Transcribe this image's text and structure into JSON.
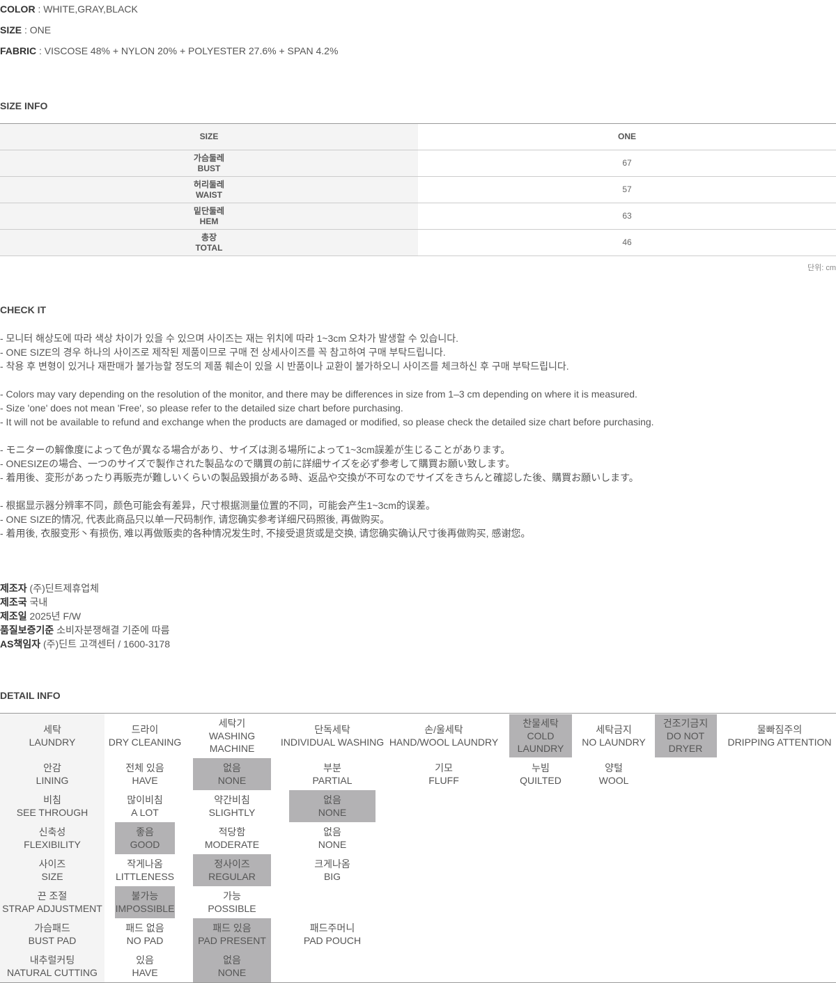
{
  "specs": [
    {
      "label": "COLOR",
      "value": "WHITE,GRAY,BLACK"
    },
    {
      "label": "SIZE",
      "value": "ONE"
    },
    {
      "label": "FABRIC",
      "value": "VISCOSE 48% + NYLON 20% + POLYESTER 27.6% + SPAN 4.2%"
    }
  ],
  "size_info": {
    "title": "SIZE INFO",
    "header": [
      "SIZE",
      "ONE"
    ],
    "rows": [
      {
        "ko": "가슴둘레",
        "en": "BUST",
        "value": "67"
      },
      {
        "ko": "허리둘레",
        "en": "WAIST",
        "value": "57"
      },
      {
        "ko": "밑단둘레",
        "en": "HEM",
        "value": "63"
      },
      {
        "ko": "총장",
        "en": "TOTAL",
        "value": "46"
      }
    ],
    "unit": "단위: cm"
  },
  "check_it": {
    "title": "CHECK IT",
    "groups": [
      [
        "- 모니터 해상도에 따라 색상 차이가 있을 수 있으며 사이즈는 재는 위치에 따라 1~3cm 오차가 발생할 수 있습니다.",
        "- ONE SIZE의 경우 하나의 사이즈로 제작된 제품이므로 구매 전 상세사이즈를 꼭 참고하여 구매 부탁드립니다.",
        "- 착용 후 변형이 있거나 재판매가 불가능할 정도의 제품 훼손이 있을 시 반품이나 교환이 불가하오니 사이즈를 체크하신 후 구매 부탁드립니다."
      ],
      [
        "- Colors may vary depending on the resolution of the monitor, and there may be differences in size from 1–3 cm depending on where it is measured.",
        "- Size 'one' does not mean 'Free', so please refer to the detailed size chart before purchasing.",
        "- It will not be available to refund and exchange when the products are damaged or modified, so please check the detailed size chart before purchasing."
      ],
      [
        "- モニターの解像度によって色が異なる場合があり、サイズは測る場所によって1~3cm誤差が生じることがあります。",
        "- ONESIZEの場合、一つのサイズで製作された製品なので購買の前に詳細サイズを必ず参考して購買お願い致します。",
        "- 着用後、変形があったり再販売が難しいくらいの製品毀損がある時、返品や交換が不可なのでサイズをきちんと確認した後、購買お願いします。"
      ],
      [
        "- 根据显示器分辨率不同，颜色可能会有差异，尺寸根据测量位置的不同，可能会产生1~3cm的误差。",
        "- ONE SIZE的情况, 代表此商品只以单一尺码制作, 请您确实参考详细尺码照後, 再做购买。",
        "- 着用後, 衣服变形丶有损伤, 难以再做贩卖的各种情况发生时, 不接受退货或是交换, 请您确实确认尺寸後再做购买, 感谢您。"
      ]
    ]
  },
  "maker_info": [
    {
      "label": "제조자",
      "value": "(주)딘트제휴업체"
    },
    {
      "label": "제조국",
      "value": "국내"
    },
    {
      "label": "제조일",
      "value": "2025년 F/W"
    },
    {
      "label": "품질보증기준",
      "value": "소비자분쟁해결 기준에 따름"
    },
    {
      "label": "AS책임자",
      "value": "(주)딘트 고객센터 / 1600-3178"
    }
  ],
  "detail_info": {
    "title": "DETAIL INFO",
    "highlight_color": "#b3b2b4",
    "rows": [
      [
        {
          "ko": "세탁",
          "en": "LAUNDRY"
        },
        {
          "ko": "드라이",
          "en": "DRY CLEANING"
        },
        {
          "ko": "세탁기",
          "en": "WASHING MACHINE"
        },
        {
          "ko": "단독세탁",
          "en": "INDIVIDUAL WASHING"
        },
        {
          "ko": "손/울세탁",
          "en": "HAND/WOOL LAUNDRY"
        },
        {
          "ko": "찬물세탁",
          "en": "COLD LAUNDRY",
          "hl": true
        },
        {
          "ko": "세탁금지",
          "en": "NO LAUNDRY"
        },
        {
          "ko": "건조기금지",
          "en": "DO NOT DRYER",
          "hl": true
        },
        {
          "ko": "물빠짐주의",
          "en": "DRIPPING ATTENTION"
        }
      ],
      [
        {
          "ko": "안감",
          "en": "LINING"
        },
        {
          "ko": "전체 있음",
          "en": "HAVE"
        },
        {
          "ko": "없음",
          "en": "NONE",
          "hl": true
        },
        {
          "ko": "부분",
          "en": "PARTIAL"
        },
        {
          "ko": "기모",
          "en": "FLUFF"
        },
        {
          "ko": "누빔",
          "en": "QUILTED"
        },
        {
          "ko": "양털",
          "en": "WOOL"
        }
      ],
      [
        {
          "ko": "비침",
          "en": "SEE THROUGH"
        },
        {
          "ko": "많이비침",
          "en": "A LOT"
        },
        {
          "ko": "약간비침",
          "en": "SLIGHTLY"
        },
        {
          "ko": "없음",
          "en": "NONE",
          "hl": true
        }
      ],
      [
        {
          "ko": "신축성",
          "en": "FLEXIBILITY"
        },
        {
          "ko": "좋음",
          "en": "GOOD",
          "hl": true
        },
        {
          "ko": "적당함",
          "en": "MODERATE"
        },
        {
          "ko": "없음",
          "en": "NONE"
        }
      ],
      [
        {
          "ko": "사이즈",
          "en": "SIZE"
        },
        {
          "ko": "작게나옴",
          "en": "LITTLENESS"
        },
        {
          "ko": "정사이즈",
          "en": "REGULAR",
          "hl": true
        },
        {
          "ko": "크게나옴",
          "en": "BIG"
        }
      ],
      [
        {
          "ko": "끈 조절",
          "en": "STRAP ADJUSTMENT"
        },
        {
          "ko": "불가능",
          "en": "IMPOSSIBLE",
          "hl": true
        },
        {
          "ko": "가능",
          "en": "POSSIBLE"
        }
      ],
      [
        {
          "ko": "가슴패드",
          "en": "BUST PAD"
        },
        {
          "ko": "패드 없음",
          "en": "NO PAD"
        },
        {
          "ko": "패드 있음",
          "en": "PAD PRESENT",
          "hl": true
        },
        {
          "ko": "패드주머니",
          "en": "PAD POUCH"
        }
      ],
      [
        {
          "ko": "내추럴커팅",
          "en": "NATURAL CUTTING"
        },
        {
          "ko": "있음",
          "en": "HAVE"
        },
        {
          "ko": "없음",
          "en": "NONE",
          "hl": true
        }
      ]
    ]
  }
}
